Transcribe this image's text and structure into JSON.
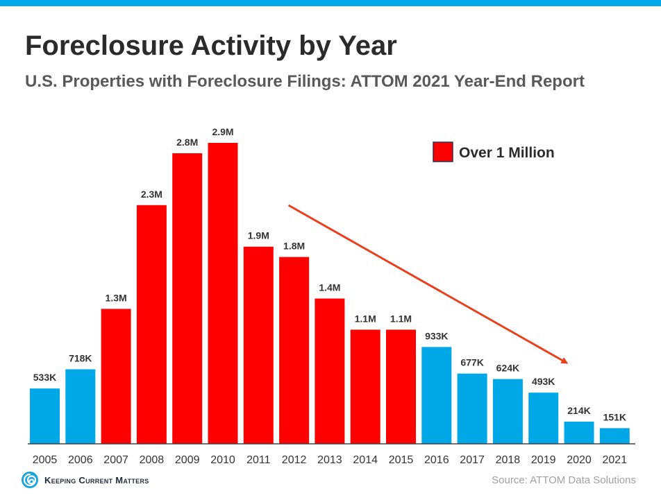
{
  "colors": {
    "accent_blue": "#00a8e8",
    "highlight_red": "#ff0000",
    "trend_arrow": "#e8401c",
    "axis": "#404040"
  },
  "header": {
    "title": "Foreclosure Activity by Year",
    "subtitle": "U.S. Properties with Foreclosure Filings: ATTOM 2021 Year-End Report"
  },
  "chart_data": {
    "type": "bar",
    "categories": [
      "2005",
      "2006",
      "2007",
      "2008",
      "2009",
      "2010",
      "2011",
      "2012",
      "2013",
      "2014",
      "2015",
      "2016",
      "2017",
      "2018",
      "2019",
      "2020",
      "2021"
    ],
    "values": [
      533000,
      718000,
      1300000,
      2300000,
      2800000,
      2900000,
      1900000,
      1800000,
      1400000,
      1100000,
      1100000,
      933000,
      677000,
      624000,
      493000,
      214000,
      151000
    ],
    "data_labels": [
      "533K",
      "718K",
      "1.3M",
      "2.3M",
      "2.8M",
      "2.9M",
      "1.9M",
      "1.8M",
      "1.4M",
      "1.1M",
      "1.1M",
      "933K",
      "677K",
      "624K",
      "493K",
      "214K",
      "151K"
    ],
    "over_million": [
      false,
      false,
      true,
      true,
      true,
      true,
      true,
      true,
      true,
      true,
      true,
      false,
      false,
      false,
      false,
      false,
      false
    ],
    "title": "Foreclosure Activity by Year",
    "subtitle": "U.S. Properties with Foreclosure Filings: ATTOM 2021 Year-End Report",
    "xlabel": "",
    "ylabel": "",
    "ylim": [
      0,
      2900000
    ],
    "grid": false,
    "legend": {
      "entries": [
        {
          "label": "Over 1 Million",
          "color": "#ff0000"
        }
      ],
      "placement": "top-right"
    },
    "annotations": [
      {
        "type": "trend-arrow",
        "from_category": "2012",
        "to_category": "2020",
        "direction": "downward",
        "color": "#e8401c"
      }
    ]
  },
  "footer": {
    "logo_text": "Keeping Current Matters",
    "logo_icon": "spiral-wave-icon",
    "source": "Source: ATTOM Data Solutions"
  }
}
